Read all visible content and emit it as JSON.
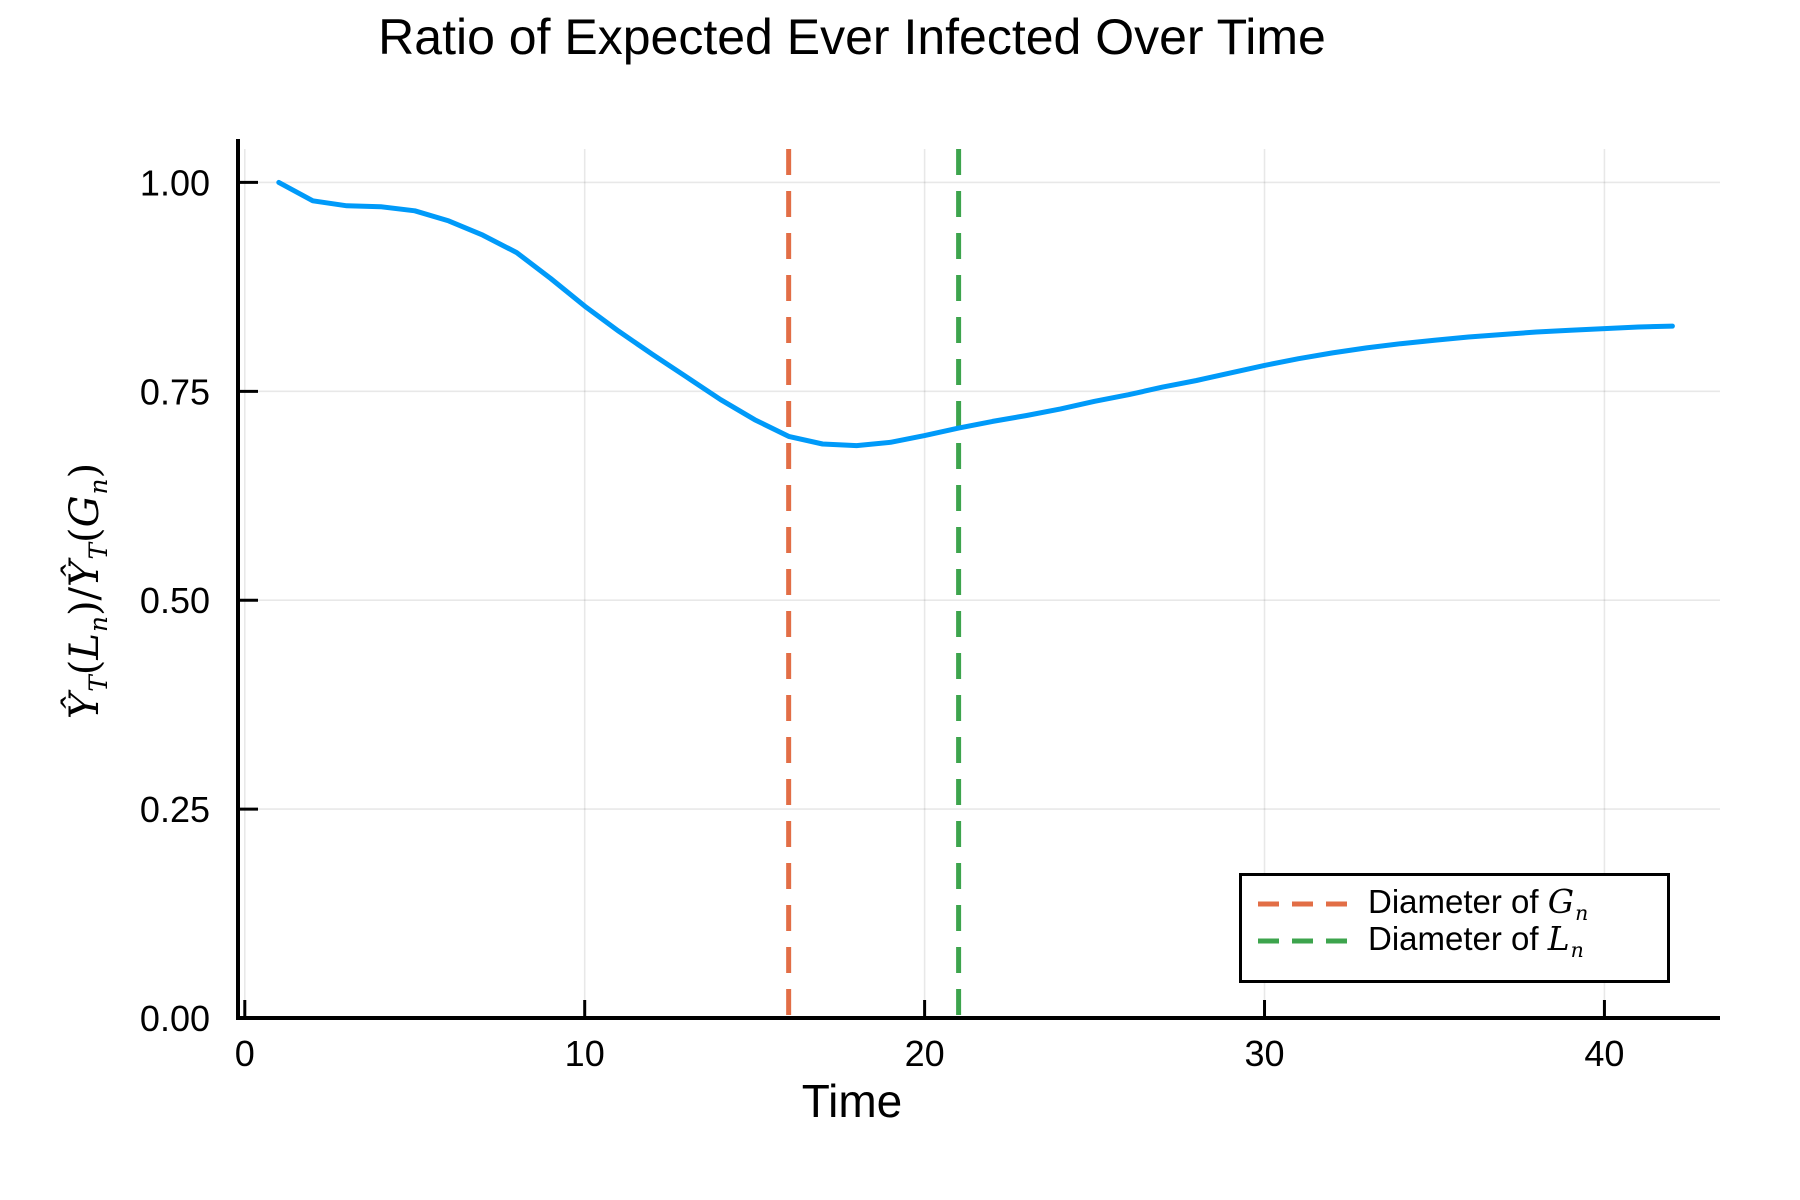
{
  "chart_data": {
    "type": "line",
    "title": "Ratio of Expected Ever Infected Over Time",
    "xlabel": "Time",
    "ylabel_parts": [
      {
        "t": "Ŷ",
        "it": true,
        "sub": "T"
      },
      {
        "t": "(",
        "it": false
      },
      {
        "t": "L",
        "it": true,
        "sub": "n"
      },
      {
        "t": ")/",
        "it": false
      },
      {
        "t": "Ŷ",
        "it": true,
        "sub": "T"
      },
      {
        "t": "(",
        "it": false
      },
      {
        "t": "G",
        "it": true,
        "sub": "n"
      },
      {
        "t": ")",
        "it": false
      }
    ],
    "xlim": [
      -0.2,
      43.4
    ],
    "ylim": [
      0.0,
      1.04
    ],
    "xticks": [
      0,
      10,
      20,
      30,
      40
    ],
    "xtick_labels": [
      "0",
      "10",
      "20",
      "30",
      "40"
    ],
    "yticks": [
      0.0,
      0.25,
      0.5,
      0.75,
      1.0
    ],
    "ytick_labels": [
      "0.00",
      "0.25",
      "0.50",
      "0.75",
      "1.00"
    ],
    "grid": true,
    "legend_position": "bottom-right",
    "series": [
      {
        "name": "ratio-curve",
        "color": "#009af9",
        "x": [
          1,
          2,
          3,
          4,
          5,
          6,
          7,
          8,
          9,
          10,
          11,
          12,
          13,
          14,
          15,
          16,
          17,
          18,
          19,
          20,
          21,
          22,
          23,
          24,
          25,
          26,
          27,
          28,
          29,
          30,
          31,
          32,
          33,
          34,
          35,
          36,
          37,
          38,
          39,
          40,
          41,
          42
        ],
        "y": [
          1.0,
          0.978,
          0.972,
          0.971,
          0.966,
          0.954,
          0.937,
          0.916,
          0.885,
          0.852,
          0.822,
          0.794,
          0.767,
          0.74,
          0.716,
          0.696,
          0.687,
          0.685,
          0.689,
          0.697,
          0.706,
          0.714,
          0.721,
          0.729,
          0.738,
          0.746,
          0.755,
          0.763,
          0.772,
          0.781,
          0.789,
          0.796,
          0.802,
          0.807,
          0.811,
          0.815,
          0.818,
          0.821,
          0.823,
          0.825,
          0.827,
          0.828
        ]
      }
    ],
    "vlines": [
      {
        "x": 16,
        "color": "#e26e46",
        "style": "dashed",
        "label_prefix": "Diameter of ",
        "label_var": "G",
        "label_sub": "n"
      },
      {
        "x": 21,
        "color": "#3da44d",
        "style": "dashed",
        "label_prefix": "Diameter of ",
        "label_var": "L",
        "label_sub": "n"
      }
    ]
  }
}
